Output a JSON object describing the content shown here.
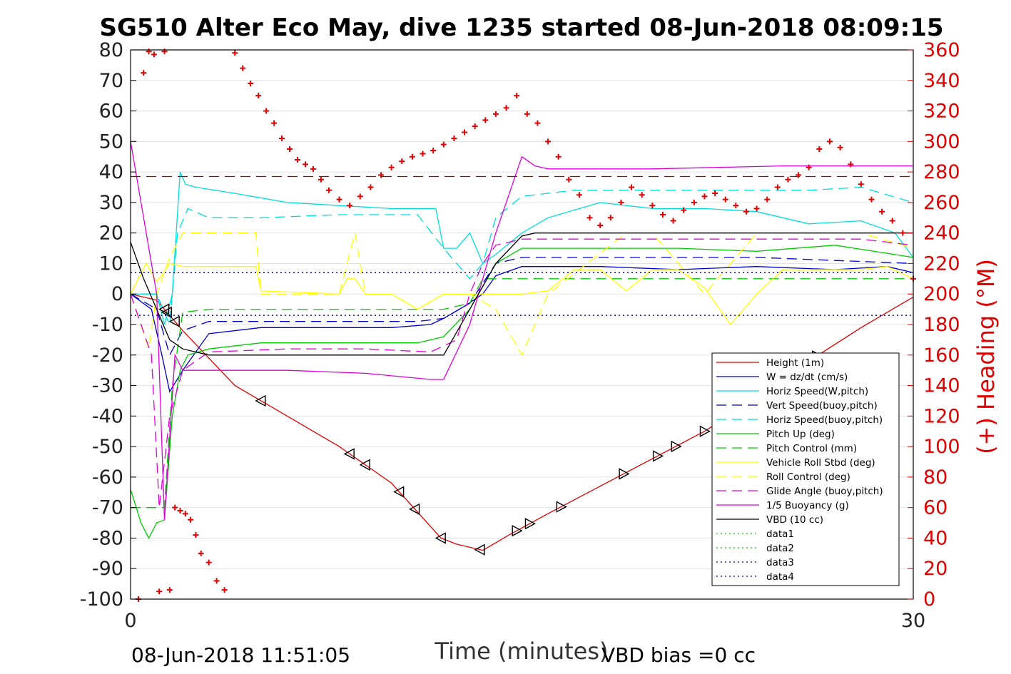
{
  "chart_data": {
    "type": "line",
    "title": "SG510 Alter Eco May, dive 1235 started 08-Jun-2018 08:09:15",
    "xlabel": "Time (minutes)",
    "ylabel": "",
    "y2label": "(+) Heading (°M)",
    "xlim": [
      0,
      30
    ],
    "ylim": [
      -100,
      80
    ],
    "y2lim": [
      0,
      360
    ],
    "xticks": [
      "0",
      "30"
    ],
    "yticks": [
      "80",
      "70",
      "60",
      "50",
      "40",
      "30",
      "20",
      "10",
      "0",
      "-10",
      "-20",
      "-30",
      "-40",
      "-50",
      "-60",
      "-70",
      "-80",
      "-90",
      "-100"
    ],
    "y2ticks": [
      "360",
      "340",
      "320",
      "300",
      "280",
      "260",
      "240",
      "220",
      "200",
      "180",
      "160",
      "140",
      "120",
      "100",
      "80",
      "60",
      "40",
      "20",
      "0"
    ],
    "grid": true,
    "legend_position": "bottom-right",
    "footer_left": "08-Jun-2018 11:51:05",
    "footer_right": "VBD bias =0 cc",
    "legend": [
      {
        "label": "Height (1m)",
        "color": "#e00000",
        "style": "solid"
      },
      {
        "label": "W = dz/dt (cm/s)",
        "color": "#0000cc",
        "style": "solid"
      },
      {
        "label": "Horiz Speed(W,pitch)",
        "color": "#00dddd",
        "style": "solid"
      },
      {
        "label": "Vert Speed(buoy,pitch)",
        "color": "#0000cc",
        "style": "dashed"
      },
      {
        "label": "Horiz Speed(buoy,pitch)",
        "color": "#00dddd",
        "style": "dashed"
      },
      {
        "label": "Pitch Up (deg)",
        "color": "#00cc00",
        "style": "solid"
      },
      {
        "label": "Pitch Control (mm)",
        "color": "#00cc00",
        "style": "dashed"
      },
      {
        "label": "Vehicle Roll Stbd (deg)",
        "color": "#ffff00",
        "style": "solid"
      },
      {
        "label": "Roll Control (deg)",
        "color": "#ffff00",
        "style": "dashed"
      },
      {
        "label": "Glide Angle (buoy,pitch)",
        "color": "#dd00dd",
        "style": "dashed"
      },
      {
        "label": "1/5 Buoyancy (g)",
        "color": "#dd00dd",
        "style": "solid"
      },
      {
        "label": "VBD (10 cc)",
        "color": "#000000",
        "style": "solid"
      },
      {
        "label": "data1",
        "color": "#00cc00",
        "style": "dotted"
      },
      {
        "label": "data2",
        "color": "#00cc00",
        "style": "dotted"
      },
      {
        "label": "data3",
        "color": "#000099",
        "style": "dotted"
      },
      {
        "label": "data4",
        "color": "#000099",
        "style": "dotted"
      }
    ],
    "series": [
      {
        "name": "Height (1m)",
        "color": "#e00000",
        "style": "solid",
        "x": [
          0,
          1,
          2,
          4,
          6,
          8,
          10,
          11.9,
          12.5,
          13.5,
          14.5,
          16,
          18,
          20,
          22,
          24,
          26,
          28,
          30
        ],
        "y": [
          0,
          -2,
          -12,
          -30,
          -40,
          -50,
          -62,
          -80,
          -82,
          -84,
          -79,
          -72,
          -63,
          -54,
          -45,
          -34,
          -22,
          -11,
          -1
        ]
      },
      {
        "name": "W = dz/dt (cm/s)",
        "color": "#0000cc",
        "style": "solid",
        "x": [
          0,
          0.8,
          1.2,
          1.5,
          2,
          3,
          5,
          8,
          10,
          11.5,
          12,
          12.8,
          13.5,
          14,
          15,
          18,
          21,
          24,
          27,
          29,
          30
        ],
        "y": [
          0,
          -5,
          -20,
          -32,
          -25,
          -13,
          -11,
          -11,
          -11,
          -10,
          -8,
          -4,
          0,
          6,
          9,
          9,
          8,
          9,
          8,
          9,
          7
        ]
      },
      {
        "name": "Horiz Speed(W,pitch)",
        "color": "#00dddd",
        "style": "solid",
        "x": [
          0,
          1,
          1.3,
          1.6,
          1.9,
          2.1,
          2.5,
          4,
          6,
          8,
          10,
          11.7,
          12,
          12.5,
          13,
          13.5,
          14,
          15,
          16,
          18,
          20,
          22,
          24,
          26,
          28,
          29.3,
          30
        ],
        "y": [
          0,
          0,
          -10,
          0,
          40,
          36,
          35,
          33,
          30,
          29,
          28,
          28,
          15,
          15,
          20,
          10,
          13,
          20,
          25,
          30,
          28,
          28,
          27,
          23,
          24,
          20,
          12
        ]
      },
      {
        "name": "Vert Speed(buoy,pitch)",
        "color": "#0000cc",
        "style": "dashed",
        "x": [
          0,
          1,
          1.5,
          2,
          3,
          5,
          8,
          11,
          12,
          13,
          14,
          15,
          18,
          21,
          24,
          27,
          30
        ],
        "y": [
          0,
          -5,
          -20,
          -12,
          -9,
          -9,
          -9,
          -9,
          -8,
          -3,
          10,
          12,
          12,
          12,
          12,
          11,
          10
        ]
      },
      {
        "name": "Horiz Speed(buoy,pitch)",
        "color": "#00dddd",
        "style": "dashed",
        "x": [
          0,
          1,
          1.5,
          1.8,
          2.2,
          3,
          5,
          8,
          11,
          12,
          13,
          13.5,
          14,
          15,
          17,
          20,
          23,
          26,
          28,
          30
        ],
        "y": [
          0,
          0,
          -10,
          20,
          28,
          25,
          25,
          26,
          26,
          15,
          5,
          10,
          25,
          32,
          34,
          34,
          34,
          34,
          35,
          30
        ]
      },
      {
        "name": "Pitch Up (deg)",
        "color": "#00cc00",
        "style": "solid",
        "x": [
          0,
          0.4,
          0.7,
          1,
          1.3,
          1.6,
          1.9,
          2.2,
          3,
          5,
          8,
          11,
          12,
          13,
          14,
          15,
          18,
          21,
          24,
          27,
          30
        ],
        "y": [
          -64,
          -75,
          -80,
          -75,
          -74,
          -40,
          -25,
          -20,
          -18,
          -16,
          -16,
          -16,
          -14,
          -5,
          10,
          15,
          15,
          15,
          14,
          16,
          12
        ]
      },
      {
        "name": "Pitch Control (mm)",
        "color": "#00cc00",
        "style": "dashed",
        "x": [
          0,
          1.3,
          1.6,
          2,
          3,
          6,
          9,
          12,
          13,
          13.5,
          15,
          20,
          25,
          30
        ],
        "y": [
          -70,
          -70,
          -30,
          -6,
          -5,
          -5,
          -5,
          -5,
          -3,
          5,
          5,
          5,
          5,
          5
        ]
      },
      {
        "name": "Vehicle Roll Stbd (deg)",
        "color": "#ffff00",
        "style": "solid",
        "x": [
          0,
          0.6,
          1,
          1.5,
          2,
          4,
          4.8,
          5,
          8,
          8.3,
          8.6,
          9,
          10,
          11,
          12,
          13,
          14,
          15,
          16,
          17,
          18,
          19,
          20,
          21,
          22,
          23,
          24,
          25,
          26,
          27,
          28,
          29,
          30
        ],
        "y": [
          0,
          10,
          4,
          10,
          9,
          9,
          9,
          1,
          0,
          5,
          5,
          0,
          0,
          -5,
          0,
          0,
          0,
          0,
          1,
          8,
          8,
          1,
          8,
          8,
          2,
          -10,
          0,
          8,
          8,
          8,
          8,
          9,
          5
        ]
      },
      {
        "name": "Roll Control (deg)",
        "color": "#ffff00",
        "style": "dashed",
        "x": [
          0,
          0.7,
          1,
          1.5,
          2,
          4.8,
          5,
          8,
          8.6,
          9,
          10,
          11,
          12,
          13,
          14,
          15,
          16,
          19,
          20,
          22,
          24,
          26,
          28,
          30
        ],
        "y": [
          0,
          -18,
          0,
          12,
          20,
          20,
          0,
          0,
          20,
          0,
          0,
          -5,
          0,
          0,
          -5,
          -20,
          0,
          20,
          20,
          0,
          20,
          20,
          20,
          15
        ]
      },
      {
        "name": "Glide Angle (buoy,pitch)",
        "color": "#dd00dd",
        "style": "dashed",
        "x": [
          0,
          0.8,
          1.1,
          1.5,
          2,
          3,
          6,
          9,
          11.5,
          12.5,
          13,
          13.5,
          14,
          15,
          17,
          20,
          24,
          28,
          30
        ],
        "y": [
          0,
          -20,
          -70,
          -40,
          -25,
          -19,
          -18,
          -18,
          -19,
          -15,
          0,
          10,
          16,
          18,
          18,
          18,
          18,
          18,
          16
        ]
      },
      {
        "name": "1/5 Buoyancy (g)",
        "color": "#dd00dd",
        "style": "solid",
        "x": [
          0,
          0.5,
          1,
          1.3,
          1.7,
          2,
          4,
          6,
          9,
          11.5,
          12,
          13,
          14,
          15,
          15.5,
          16,
          20,
          25,
          30
        ],
        "y": [
          50,
          25,
          0,
          -74,
          -20,
          -25,
          -25,
          -25,
          -26,
          -28,
          -28,
          -10,
          20,
          45,
          42,
          41,
          41,
          42,
          42
        ]
      },
      {
        "name": "VBD (10 cc)",
        "color": "#000000",
        "style": "solid",
        "x": [
          0,
          0.5,
          1,
          1.5,
          2,
          3,
          6,
          9,
          11.5,
          12,
          13,
          14,
          15,
          15.5,
          20,
          25,
          30
        ],
        "y": [
          17,
          5,
          -5,
          -15,
          -18,
          -20,
          -20,
          -20,
          -20,
          -20,
          -5,
          10,
          19,
          20,
          20,
          20,
          20
        ]
      },
      {
        "name": "data3",
        "color": "#000099",
        "style": "dotted",
        "x": [
          0,
          30
        ],
        "y": [
          7,
          7
        ]
      },
      {
        "name": "data4",
        "color": "#000099",
        "style": "dotted",
        "x": [
          0,
          30
        ],
        "y": [
          -7,
          -7
        ]
      },
      {
        "name": "",
        "color": "#aa0000",
        "style": "dashed",
        "x": [
          0,
          30
        ],
        "y": [
          38.5,
          38.5
        ]
      }
    ],
    "heading_points": {
      "color": "#e00000",
      "marker": "+",
      "x": [
        0.3,
        0.5,
        0.7,
        0.9,
        1.1,
        1.3,
        1.5,
        1.7,
        1.9,
        2.1,
        2.3,
        2.5,
        2.7,
        3,
        3.3,
        3.6,
        4,
        4.3,
        4.6,
        4.9,
        5.2,
        5.5,
        5.8,
        6.1,
        6.4,
        6.7,
        7,
        7.3,
        7.6,
        8,
        8.4,
        8.8,
        9.2,
        9.6,
        10,
        10.4,
        10.8,
        11.2,
        11.6,
        12,
        12.4,
        12.8,
        13.2,
        13.6,
        14,
        14.4,
        14.8,
        15.2,
        15.6,
        16,
        16.4,
        16.8,
        17.2,
        17.6,
        18,
        18.4,
        18.8,
        19.2,
        19.6,
        20,
        20.4,
        20.8,
        21.2,
        21.6,
        22,
        22.4,
        22.8,
        23.2,
        23.6,
        24,
        24.4,
        24.8,
        25.2,
        25.6,
        26,
        26.4,
        26.8,
        27.2,
        27.6,
        28,
        28.4,
        28.8,
        29.2,
        29.6,
        30
      ],
      "y": [
        0,
        345,
        359,
        357,
        5,
        359,
        6,
        60,
        58,
        56,
        52,
        42,
        30,
        24,
        12,
        6,
        358,
        348,
        338,
        330,
        320,
        312,
        302,
        295,
        288,
        285,
        282,
        275,
        268,
        262,
        258,
        264,
        270,
        278,
        283,
        287,
        290,
        292,
        294,
        298,
        302,
        306,
        310,
        314,
        318,
        322,
        330,
        318,
        312,
        300,
        290,
        275,
        265,
        250,
        245,
        250,
        260,
        270,
        265,
        258,
        252,
        248,
        255,
        260,
        264,
        266,
        262,
        258,
        254,
        256,
        262,
        270,
        275,
        278,
        283,
        295,
        300,
        296,
        285,
        272,
        262,
        254,
        248,
        240,
        210
      ]
    }
  }
}
